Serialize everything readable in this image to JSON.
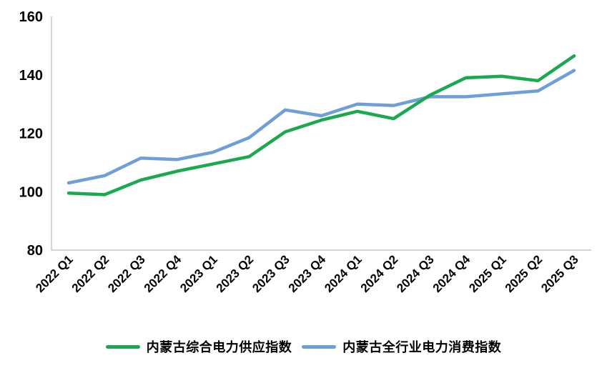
{
  "chart_data": {
    "type": "line",
    "title": "",
    "xlabel": "",
    "ylabel": "",
    "categories": [
      "2022 Q1",
      "2022 Q2",
      "2022 Q3",
      "2022 Q4",
      "2023 Q1",
      "2023 Q2",
      "2023 Q3",
      "2023 Q4",
      "2024 Q1",
      "2024 Q2",
      "2024 Q3",
      "2024 Q4",
      "2025 Q1",
      "2025 Q2",
      "2025 Q3"
    ],
    "series": [
      {
        "name": "内蒙古综合电力供应指数",
        "color": "#1BA94F",
        "values": [
          99.5,
          99,
          104,
          107,
          109.5,
          112,
          120.5,
          124.5,
          127.5,
          125,
          133,
          139,
          139.5,
          138,
          146.5
        ]
      },
      {
        "name": "内蒙古全行业电力消费指数",
        "color": "#6F9FD8",
        "values": [
          103,
          105.5,
          111.5,
          111,
          113.5,
          118.5,
          128,
          126,
          130,
          129.5,
          132.5,
          132.5,
          133.5,
          134.5,
          141.5
        ]
      }
    ],
    "ylim": [
      80,
      160
    ],
    "y_ticks": [
      80,
      100,
      120,
      140,
      160
    ],
    "grid": false,
    "legend_position": "bottom",
    "axis_color": "#D6D6D6",
    "tick_label_color": "#000000"
  }
}
